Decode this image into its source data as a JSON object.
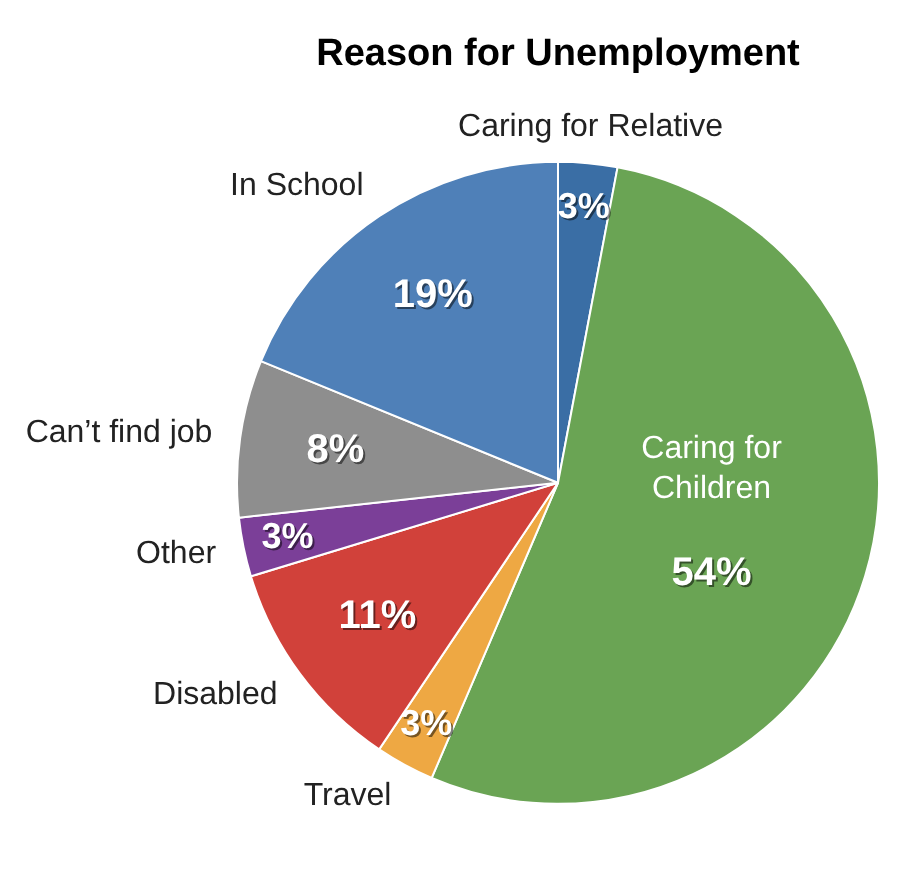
{
  "chart_data": {
    "type": "pie",
    "title": "Reason for Unemployment",
    "categories": [
      "Caring for Relative",
      "Caring for Children",
      "Travel",
      "Disabled",
      "Other",
      "Can’t find job",
      "In School"
    ],
    "values": [
      3,
      54,
      3,
      11,
      3,
      8,
      19
    ],
    "colors": [
      "#3a6ea5",
      "#6aa454",
      "#eea843",
      "#d1413a",
      "#7b3f98",
      "#8e8e8e",
      "#4f80b8"
    ],
    "value_labels": [
      "3%",
      "54%",
      "3%",
      "11%",
      "3%",
      "8%",
      "19%"
    ],
    "legend": false
  }
}
